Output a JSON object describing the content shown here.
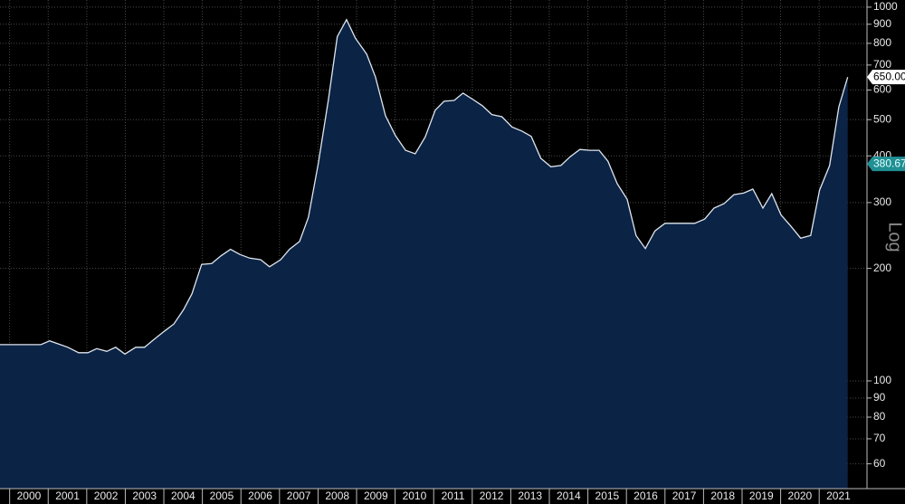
{
  "chart_data": {
    "type": "area",
    "yscale": "log",
    "y_scale_label": "Log",
    "grid": true,
    "background": "#000000",
    "xlim": [
      1999.75,
      2022.24
    ],
    "ylim": [
      51.5,
      1045
    ],
    "xticks": [
      2000,
      2001,
      2002,
      2003,
      2004,
      2005,
      2006,
      2007,
      2008,
      2009,
      2010,
      2011,
      2012,
      2013,
      2014,
      2015,
      2016,
      2017,
      2018,
      2019,
      2020,
      2021
    ],
    "yticks": [
      60,
      70,
      80,
      90,
      100,
      200,
      300,
      400,
      500,
      600,
      700,
      800,
      900,
      1000
    ],
    "series": [
      {
        "color": "#dfe6ee",
        "fill_color": "#0b2345",
        "x": [
          1999.75,
          2000.81,
          2001.04,
          2001.51,
          2001.79,
          2002.03,
          2002.26,
          2002.52,
          2002.75,
          2002.99,
          2003.27,
          2003.5,
          2003.74,
          2004.02,
          2004.26,
          2004.51,
          2004.73,
          2004.98,
          2005.24,
          2005.48,
          2005.73,
          2005.97,
          2006.23,
          2006.51,
          2006.74,
          2007.03,
          2007.26,
          2007.52,
          2007.75,
          2008.01,
          2008.27,
          2008.5,
          2008.74,
          2008.97,
          2009.26,
          2009.49,
          2009.75,
          2010.01,
          2010.27,
          2010.52,
          2010.78,
          2011.04,
          2011.27,
          2011.53,
          2011.76,
          2012.02,
          2012.26,
          2012.51,
          2012.77,
          2013.03,
          2013.29,
          2013.53,
          2013.78,
          2014.04,
          2014.3,
          2014.54,
          2014.79,
          2015.05,
          2015.29,
          2015.52,
          2015.76,
          2016.02,
          2016.25,
          2016.49,
          2016.74,
          2017.0,
          2017.26,
          2017.51,
          2017.77,
          2018.03,
          2018.27,
          2018.53,
          2018.79,
          2019.04,
          2019.28,
          2019.54,
          2019.77,
          2020.01,
          2020.27,
          2020.52,
          2020.78,
          2021.01,
          2021.27,
          2021.51,
          2021.74
        ],
        "values": [
          125,
          125,
          128,
          123,
          119,
          119,
          122,
          120,
          123,
          118,
          123,
          123,
          129,
          136,
          142,
          155,
          171,
          205,
          206,
          216,
          225,
          218,
          213,
          211,
          202,
          211,
          225,
          236,
          274,
          383,
          566,
          834,
          926,
          826,
          749,
          650,
          512,
          453,
          414,
          405,
          449,
          530,
          560,
          563,
          589,
          566,
          545,
          516,
          509,
          478,
          466,
          451,
          394,
          374,
          377,
          398,
          416,
          414,
          414,
          387,
          337,
          306,
          245,
          226,
          252,
          264,
          264,
          264,
          264,
          271,
          290,
          298,
          315,
          318,
          326,
          290,
          317,
          278,
          259,
          241,
          245,
          324,
          377,
          541,
          650
        ]
      }
    ],
    "markers": [
      {
        "value": 650,
        "label": "650.00",
        "color": "#ffffff",
        "text_color": "#000000"
      },
      {
        "value": 380.67,
        "label": "380.67",
        "color": "#1f8f93",
        "text_color": "#e6ffff"
      }
    ]
  }
}
